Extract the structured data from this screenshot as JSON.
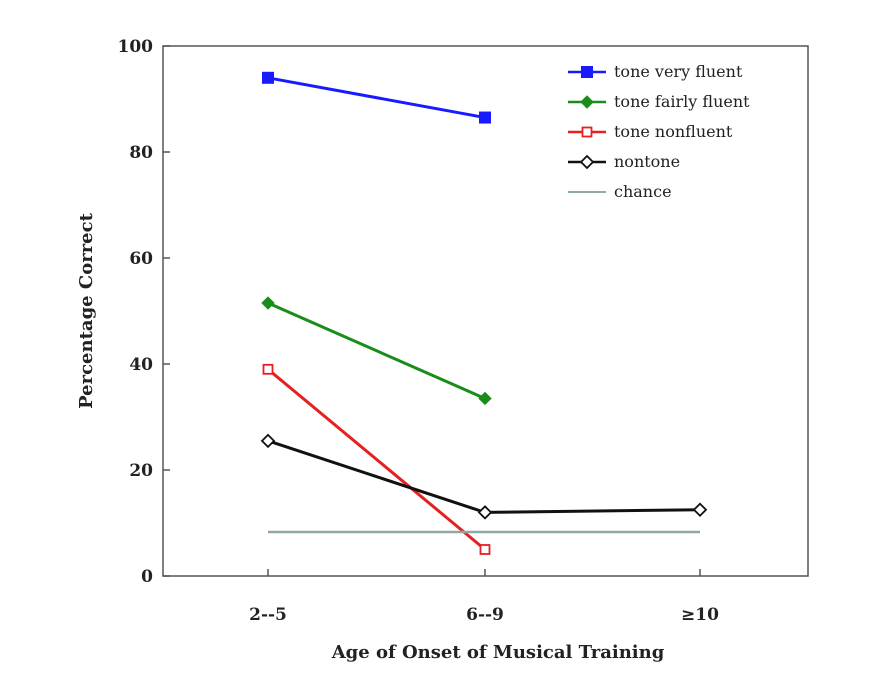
{
  "chart_data": {
    "type": "line",
    "title": "",
    "xlabel": "Age of Onset of Musical Training",
    "ylabel": "Percentage Correct",
    "categories": [
      "2--5",
      "6--9",
      "≥10"
    ],
    "ylim": [
      0,
      100
    ],
    "yticks": [
      0,
      20,
      40,
      60,
      80,
      100
    ],
    "grid": false,
    "legend_position": "top-right",
    "series": [
      {
        "name": "tone very fluent",
        "values": [
          94,
          86.5,
          null
        ],
        "color": "#1a1aff",
        "marker": "filled-square"
      },
      {
        "name": "tone fairly fluent",
        "values": [
          51.5,
          33.5,
          null
        ],
        "color": "#1a8c1a",
        "marker": "filled-diamond"
      },
      {
        "name": "tone nonfluent",
        "values": [
          39,
          5,
          null
        ],
        "color": "#e62020",
        "marker": "open-square"
      },
      {
        "name": "nontone",
        "values": [
          25.5,
          12,
          12.5
        ],
        "color": "#111111",
        "marker": "open-diamond"
      },
      {
        "name": "chance",
        "values": [
          8.3,
          8.3,
          8.3
        ],
        "color": "#8fa8a0",
        "marker": "none"
      }
    ]
  }
}
